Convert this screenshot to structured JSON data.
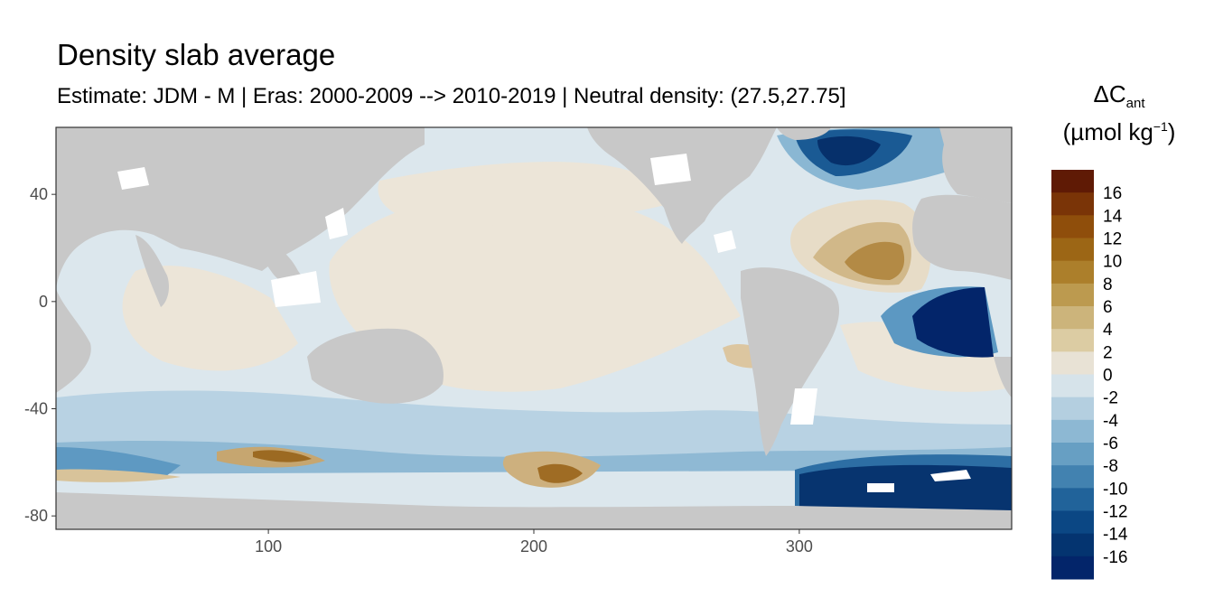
{
  "title": "Density slab average",
  "subtitle": "Estimate: JDM - M | Eras: 2000-2009 --> 2010-2019 | Neutral density: (27.5,27.75]",
  "legend": {
    "title_main": "ΔC",
    "title_sub": "ant",
    "unit_pre": "(µmol kg",
    "unit_sup": "−1",
    "unit_post": ")",
    "labels": [
      "16",
      "14",
      "12",
      "10",
      "8",
      "6",
      "4",
      "2",
      "0",
      "-2",
      "-4",
      "-6",
      "-8",
      "-10",
      "-12",
      "-14",
      "-16"
    ],
    "colors": [
      "#5f1a05",
      "#7a3407",
      "#8f4e0b",
      "#9c6615",
      "#ac7f2b",
      "#bc9a4f",
      "#ccb47b",
      "#dccca3",
      "#e8e2d5",
      "#d6e3ea",
      "#b4cfe0",
      "#8db8d3",
      "#679fc3",
      "#4282b0",
      "#21639a",
      "#0b4784",
      "#043470",
      "#03256a"
    ]
  },
  "chart_data": {
    "type": "heatmap",
    "title": "Density slab average",
    "subtitle": "Estimate: JDM - M | Eras: 2000-2009 --> 2010-2019 | Neutral density: (27.5,27.75]",
    "xlabel": "",
    "ylabel": "",
    "xlim": [
      20,
      380
    ],
    "ylim": [
      -85,
      65
    ],
    "x_ticks": [
      100,
      200,
      300
    ],
    "y_ticks": [
      40,
      0,
      -40,
      -80
    ],
    "colorbar": {
      "variable": "ΔCant",
      "unit": "µmol kg−1",
      "range": [
        -18,
        18
      ],
      "step": 2
    },
    "regions": [
      {
        "lon": 335,
        "lat": 15,
        "value": 12
      },
      {
        "lon": 370,
        "lat": -3,
        "value": -16
      },
      {
        "lon": 350,
        "lat": -67,
        "value": -14
      },
      {
        "lon": 325,
        "lat": 55,
        "value": -12
      },
      {
        "lon": 100,
        "lat": -58,
        "value": 6
      },
      {
        "lon": 210,
        "lat": -63,
        "value": 8
      },
      {
        "lon": 250,
        "lat": -20,
        "value": 2
      },
      {
        "lon": 220,
        "lat": 40,
        "value": 0
      },
      {
        "lon": 60,
        "lat": -62,
        "value": -6
      }
    ]
  }
}
